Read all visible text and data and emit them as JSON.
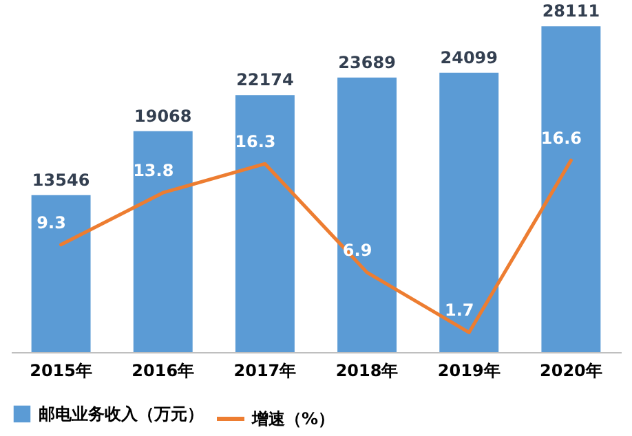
{
  "chart_data": {
    "type": "bar",
    "categories": [
      "2015年",
      "2016年",
      "2017年",
      "2018年",
      "2019年",
      "2020年"
    ],
    "series": [
      {
        "name": "邮电业务收入（万元）",
        "color": "#5b9bd5",
        "values": [
          13546,
          19068,
          22174,
          23689,
          24099,
          28111
        ]
      },
      {
        "name": "增速（%）",
        "type": "line",
        "axis": "y2",
        "color": "#ed7d31",
        "values": [
          9.3,
          13.8,
          16.3,
          6.9,
          1.7,
          16.6
        ]
      }
    ],
    "data_labels": true,
    "legend": "bottom",
    "marker": "none"
  }
}
